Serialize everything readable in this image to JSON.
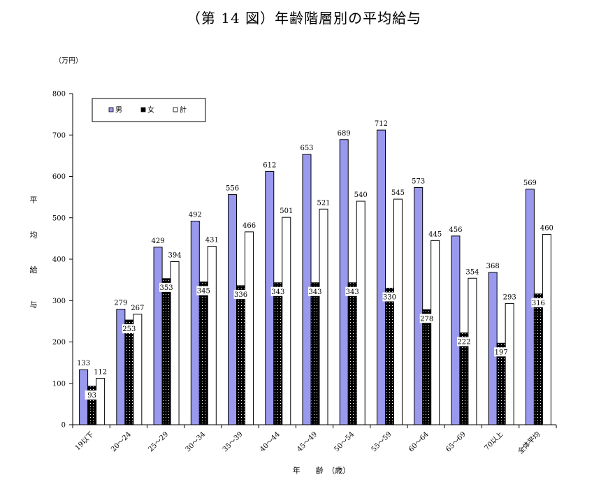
{
  "title": "（第 14 図）年齢階層別の平均給与",
  "chart_data": {
    "type": "bar",
    "unit_label": "（万円）",
    "ylabel": "平均給与",
    "xlabel": "年　　齢　（歳）",
    "ylim": [
      0,
      800
    ],
    "yticks": [
      0,
      100,
      200,
      300,
      400,
      500,
      600,
      700,
      800
    ],
    "grid": false,
    "legend_position": "top-left",
    "categories": [
      "19以下",
      "20～24",
      "25～29",
      "30～34",
      "35～39",
      "40～44",
      "45～49",
      "50～54",
      "55～59",
      "60～64",
      "65～69",
      "70以上",
      "全体平均"
    ],
    "series": [
      {
        "name": "男",
        "color": "#9999ee",
        "pattern": "solid",
        "values": [
          133,
          279,
          429,
          492,
          556,
          612,
          653,
          689,
          712,
          573,
          456,
          368,
          569
        ]
      },
      {
        "name": "女",
        "color": "#000000",
        "pattern": "dotted",
        "values": [
          93,
          253,
          353,
          345,
          336,
          343,
          343,
          343,
          330,
          278,
          222,
          197,
          316
        ]
      },
      {
        "name": "計",
        "color": "#ffffff",
        "pattern": "outline",
        "values": [
          112,
          267,
          394,
          431,
          466,
          501,
          521,
          540,
          545,
          445,
          354,
          293,
          460
        ]
      }
    ]
  }
}
